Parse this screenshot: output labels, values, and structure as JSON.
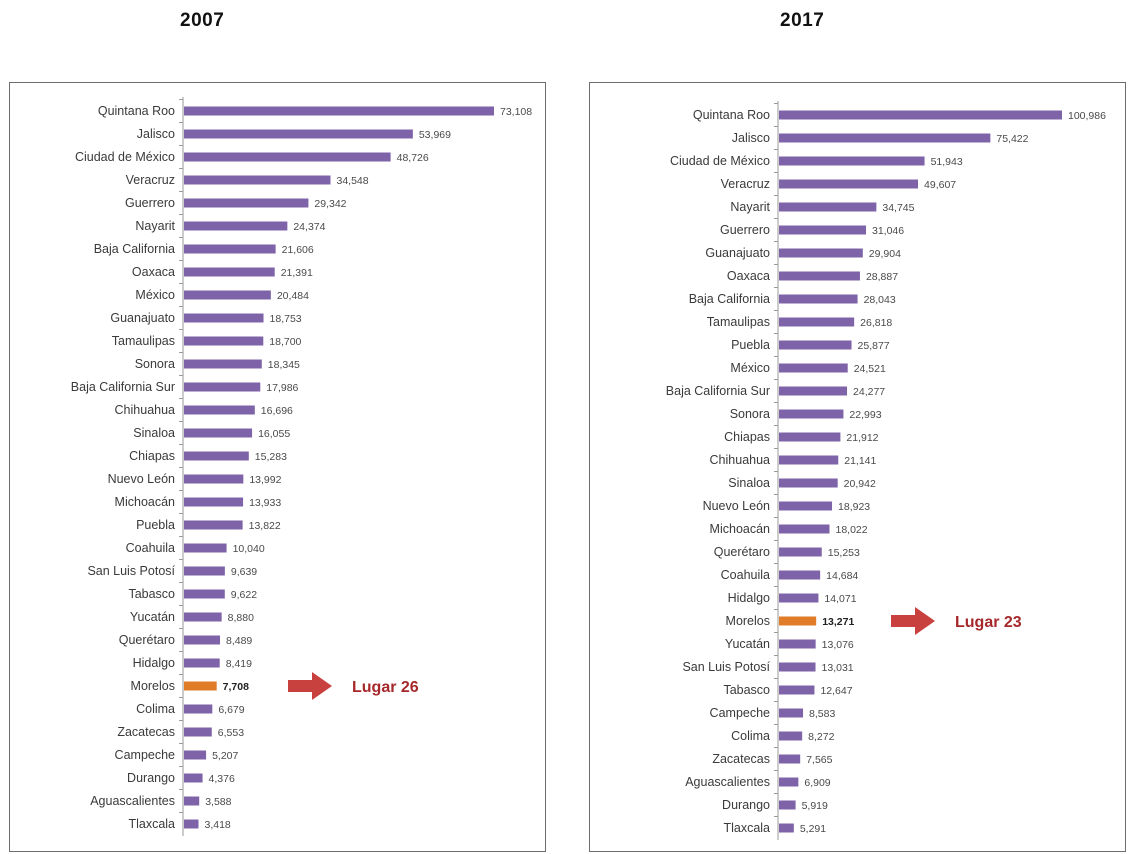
{
  "colors": {
    "bar": "#7f63a8",
    "highlight": "#e07b27",
    "arrow": "#c9413f",
    "axis": "#9a9a9a"
  },
  "chart_data": [
    {
      "type": "bar",
      "orientation": "horizontal",
      "title": "2007",
      "highlight": "Morelos",
      "annotation": "Lugar 26",
      "xlim": [
        0,
        73108
      ],
      "categories": [
        "Quintana Roo",
        "Jalisco",
        "Ciudad de México",
        "Veracruz",
        "Guerrero",
        "Nayarit",
        "Baja California",
        "Oaxaca",
        "México",
        "Guanajuato",
        "Tamaulipas",
        "Sonora",
        "Baja California Sur",
        "Chihuahua",
        "Sinaloa",
        "Chiapas",
        "Nuevo León",
        "Michoacán",
        "Puebla",
        "Coahuila",
        "San Luis Potosí",
        "Tabasco",
        "Yucatán",
        "Querétaro",
        "Hidalgo",
        "Morelos",
        "Colima",
        "Zacatecas",
        "Campeche",
        "Durango",
        "Aguascalientes",
        "Tlaxcala"
      ],
      "values": [
        73108,
        53969,
        48726,
        34548,
        29342,
        24374,
        21606,
        21391,
        20484,
        18753,
        18700,
        18345,
        17986,
        16696,
        16055,
        15283,
        13992,
        13933,
        13822,
        10040,
        9639,
        9622,
        8880,
        8489,
        8419,
        7708,
        6679,
        6553,
        5207,
        4376,
        3588,
        3418
      ],
      "value_labels": [
        "73,108",
        "53,969",
        "48,726",
        "34,548",
        "29,342",
        "24,374",
        "21,606",
        "21,391",
        "20,484",
        "18,753",
        "18,700",
        "18,345",
        "17,986",
        "16,696",
        "16,055",
        "15,283",
        "13,992",
        "13,933",
        "13,822",
        "10,040",
        "9,639",
        "9,622",
        "8,880",
        "8,489",
        "8,419",
        "7,708",
        "6,679",
        "6,553",
        "5,207",
        "4,376",
        "3,588",
        "3,418"
      ]
    },
    {
      "type": "bar",
      "orientation": "horizontal",
      "title": "2017",
      "highlight": "Morelos",
      "annotation": "Lugar 23",
      "xlim": [
        0,
        100986
      ],
      "categories": [
        "Quintana Roo",
        "Jalisco",
        "Ciudad de México",
        "Veracruz",
        "Nayarit",
        "Guerrero",
        "Guanajuato",
        "Oaxaca",
        "Baja California",
        "Tamaulipas",
        "Puebla",
        "México",
        "Baja California Sur",
        "Sonora",
        "Chiapas",
        "Chihuahua",
        "Sinaloa",
        "Nuevo León",
        "Michoacán",
        "Querétaro",
        "Coahuila",
        "Hidalgo",
        "Morelos",
        "Yucatán",
        "San Luis Potosí",
        "Tabasco",
        "Campeche",
        "Colima",
        "Zacatecas",
        "Aguascalientes",
        "Durango",
        "Tlaxcala"
      ],
      "values": [
        100986,
        75422,
        51943,
        49607,
        34745,
        31046,
        29904,
        28887,
        28043,
        26818,
        25877,
        24521,
        24277,
        22993,
        21912,
        21141,
        20942,
        18923,
        18022,
        15253,
        14684,
        14071,
        13271,
        13076,
        13031,
        12647,
        8583,
        8272,
        7565,
        6909,
        5919,
        5291
      ],
      "value_labels": [
        "100,986",
        "75,422",
        "51,943",
        "49,607",
        "34,745",
        "31,046",
        "29,904",
        "28,887",
        "28,043",
        "26,818",
        "25,877",
        "24,521",
        "24,277",
        "22,993",
        "21,912",
        "21,141",
        "20,942",
        "18,923",
        "18,022",
        "15,253",
        "14,684",
        "14,071",
        "13,271",
        "13,076",
        "13,031",
        "12,647",
        "8,583",
        "8,272",
        "7,565",
        "6,909",
        "5,919",
        "5,291"
      ]
    }
  ]
}
